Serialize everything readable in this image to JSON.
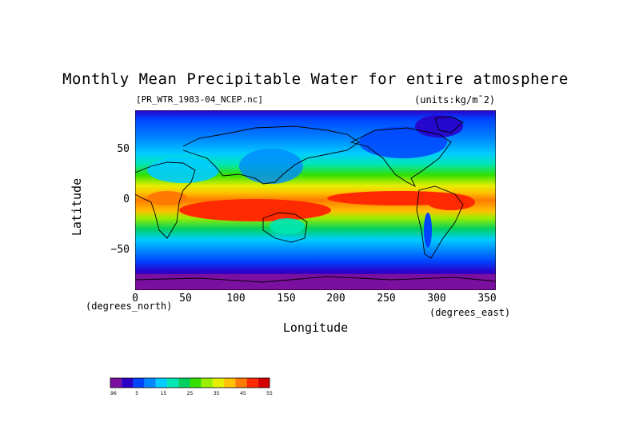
{
  "title": "Monthly Mean Precipitable Water for entire atmosphere",
  "subtitle_left": "[PR_WTR_1983-04_NCEP.nc]",
  "subtitle_right": "(units:kg/m¯2)",
  "axes": {
    "xlabel": "Longitude",
    "ylabel": "Latitude",
    "x_unit_label": "(degrees_east)",
    "y_unit_label": "(degrees_north)",
    "x_ticks": [
      "0",
      "50",
      "100",
      "150",
      "200",
      "250",
      "300",
      "350"
    ],
    "y_ticks": [
      "50",
      "0",
      "−50"
    ],
    "xlim": [
      0,
      360
    ],
    "ylim": [
      -90,
      90
    ]
  },
  "colorbar": {
    "labels": [
      "-1.96",
      "5",
      "15",
      "25",
      "35",
      "45",
      "55"
    ],
    "colors": [
      "#7a0fa0",
      "#2a00c8",
      "#0044ff",
      "#0088ff",
      "#00ccff",
      "#00e6b4",
      "#00d060",
      "#33e000",
      "#99ee00",
      "#e6ee00",
      "#ffc000",
      "#ff7a00",
      "#ff2a00",
      "#d40000"
    ]
  },
  "chart_data": {
    "type": "heatmap",
    "title": "Monthly Mean Precipitable Water for entire atmosphere",
    "xlabel": "Longitude",
    "ylabel": "Latitude",
    "xlim": [
      0,
      360
    ],
    "ylim": [
      -90,
      90
    ],
    "units": "kg/m^2",
    "zonal_profile_note_lat": [
      90,
      60,
      40,
      20,
      5,
      -5,
      -20,
      -40,
      -60,
      -75,
      -90
    ],
    "zonal_profile_values": [
      3,
      7,
      15,
      30,
      45,
      47,
      35,
      18,
      9,
      4,
      1
    ]
  }
}
